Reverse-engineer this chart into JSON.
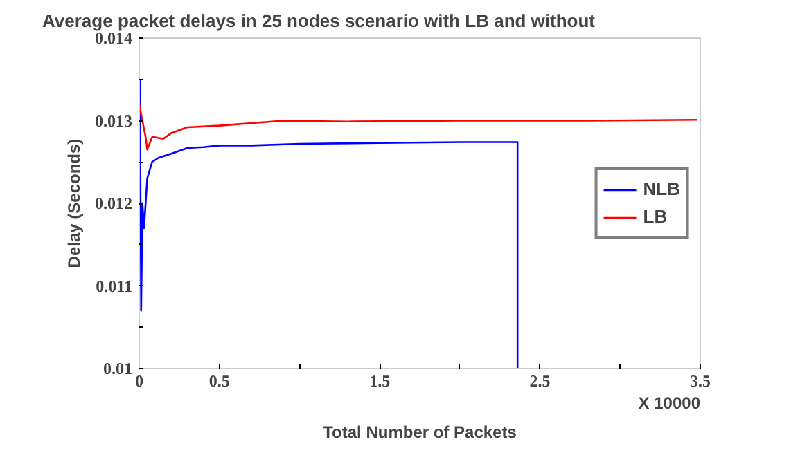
{
  "chart_data": {
    "type": "line",
    "title": "Average packet delays in 25 nodes scenario with LB and without",
    "xlabel": "Total Number of Packets",
    "ylabel": "Delay (Seconds)",
    "annotations": [
      "X 10000"
    ],
    "series": [
      {
        "name": "NLB",
        "color": "#0000ff",
        "x": [
          0.004,
          0.007,
          0.012,
          0.02,
          0.03,
          0.05,
          0.08,
          0.12,
          0.2,
          0.3,
          0.4,
          0.5,
          0.7,
          1.0,
          1.5,
          2.0,
          2.36,
          2.36
        ],
        "values": [
          0.0135,
          0.0125,
          0.0107,
          0.012,
          0.0117,
          0.0123,
          0.0125,
          0.01255,
          0.0126,
          0.01267,
          0.01268,
          0.0127,
          0.0127,
          0.01272,
          0.01273,
          0.01274,
          0.01274,
          0.01
        ]
      },
      {
        "name": "LB",
        "color": "#ff0000",
        "x": [
          0,
          0.01,
          0.02,
          0.04,
          0.05,
          0.08,
          0.1,
          0.15,
          0.2,
          0.3,
          0.5,
          0.9,
          1.3,
          2.0,
          2.8,
          3.48
        ],
        "values": [
          0.0132,
          0.0131,
          0.013,
          0.0128,
          0.01265,
          0.0128,
          0.0128,
          0.01278,
          0.01285,
          0.01292,
          0.01294,
          0.013,
          0.01299,
          0.013,
          0.013,
          0.01301
        ]
      }
    ],
    "xlim": [
      0,
      3.5
    ],
    "ylim": [
      0.01,
      0.014
    ],
    "xticks": [
      0,
      0.5,
      {
        "value": 1,
        "label": null
      },
      1.5,
      {
        "value": 2,
        "label": null
      },
      2.5,
      {
        "value": 3,
        "label": null
      },
      3.5
    ],
    "yticks": [
      0.01,
      {
        "value": 0.0105,
        "label": null
      },
      0.011,
      {
        "value": 0.0115,
        "label": null
      },
      0.012,
      {
        "value": 0.0125,
        "label": null
      },
      0.013,
      {
        "value": 0.0135,
        "label": null
      },
      0.014
    ],
    "legend": "right",
    "grid": false,
    "line_style": "solid"
  }
}
